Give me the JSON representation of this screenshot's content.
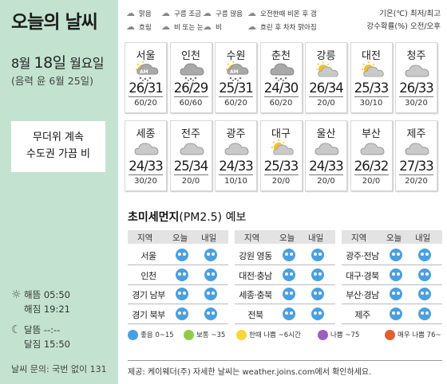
{
  "title": "오늘의 날씨",
  "date": {
    "month": "8월",
    "day": "18일",
    "weekday": "월요일",
    "lunar": "(음력 윤 6월 25일)"
  },
  "note": [
    "무더위 계속",
    "수도권 가끔 비"
  ],
  "sun": {
    "rise": "해뜸 05:50",
    "set": "해짐 19:21"
  },
  "moon": {
    "rise": "달뜸 --:--",
    "set": "달짐 15:50"
  },
  "contact": "날씨 문의: 국번 없이 131",
  "legend_icons": [
    {
      "label": "맑음",
      "icon": "sun-icon"
    },
    {
      "label": "구름 조금",
      "icon": "partly-cloudy-icon"
    },
    {
      "label": "구름 많음",
      "icon": "cloudy-icon"
    },
    {
      "label": "오전한때 비온 후 갬",
      "icon": "rain-then-clear-icon"
    },
    {
      "label": "흐림",
      "icon": "overcast-icon"
    },
    {
      "label": "비 또는 눈",
      "icon": "rain-or-snow-icon"
    },
    {
      "label": "비",
      "icon": "rain-icon"
    },
    {
      "label": "흐린 후 차차 맑아짐",
      "icon": "cloudy-then-clear-icon"
    }
  ],
  "legend_right": [
    "기온(℃) 최저/최고",
    "강수확률(%) 오전/오후"
  ],
  "cities": [
    {
      "name": "서울",
      "temp": "26/31",
      "rain": "60/20",
      "icon": "am-rain-icon"
    },
    {
      "name": "인천",
      "temp": "26/29",
      "rain": "60/60",
      "icon": "rain-icon"
    },
    {
      "name": "수원",
      "temp": "25/31",
      "rain": "60/20",
      "icon": "am-rain-icon"
    },
    {
      "name": "춘천",
      "temp": "24/30",
      "rain": "60/20",
      "icon": "rain-icon"
    },
    {
      "name": "강릉",
      "temp": "26/34",
      "rain": "20/0",
      "icon": "partly-cloudy-icon"
    },
    {
      "name": "대전",
      "temp": "25/33",
      "rain": "30/10",
      "icon": "partly-cloudy-icon"
    },
    {
      "name": "청주",
      "temp": "26/33",
      "rain": "30/20",
      "icon": "cloudy-icon"
    },
    {
      "name": "세종",
      "temp": "24/33",
      "rain": "30/20",
      "icon": "cloudy-icon"
    },
    {
      "name": "전주",
      "temp": "25/34",
      "rain": "20/0",
      "icon": "cloudy-icon"
    },
    {
      "name": "광주",
      "temp": "24/33",
      "rain": "10/10",
      "icon": "cloudy-icon"
    },
    {
      "name": "대구",
      "temp": "25/33",
      "rain": "20/0",
      "icon": "partly-cloudy-icon"
    },
    {
      "name": "울산",
      "temp": "24/33",
      "rain": "20/0",
      "icon": "cloudy-icon"
    },
    {
      "name": "부산",
      "temp": "26/32",
      "rain": "20/0",
      "icon": "cloudy-icon"
    },
    {
      "name": "제주",
      "temp": "27/33",
      "rain": "20/20",
      "icon": "cloudy-icon"
    }
  ],
  "pm": {
    "title": "초미세먼지",
    "title_sub": "(PM2.5) 예보",
    "headers": [
      "지역",
      "오늘",
      "내일"
    ],
    "columns": [
      [
        "서울",
        "인천",
        "경기 남부",
        "경기 북부"
      ],
      [
        "강원 영동",
        "대전·충남",
        "세종·충북",
        "전북"
      ],
      [
        "광주·전남",
        "대구·경북",
        "부산·경남",
        "제주"
      ]
    ],
    "level_color": "#4a9fe0",
    "legend": [
      {
        "label": "좋음 0~15",
        "color": "#4a9fe0"
      },
      {
        "label": "보통 ~35",
        "color": "#8fcc48"
      },
      {
        "label": "한때 나쁨 ~6시간",
        "color": "#f6d63a"
      },
      {
        "label": "나쁨 ~75",
        "color": "#9b5fc0"
      },
      {
        "label": "매우 나쁨 76~",
        "color": "#e0602e"
      }
    ]
  },
  "footer": "제공: 케이웨더(주) 자세한 날씨는 weather.joins.com에서 확인하세요."
}
